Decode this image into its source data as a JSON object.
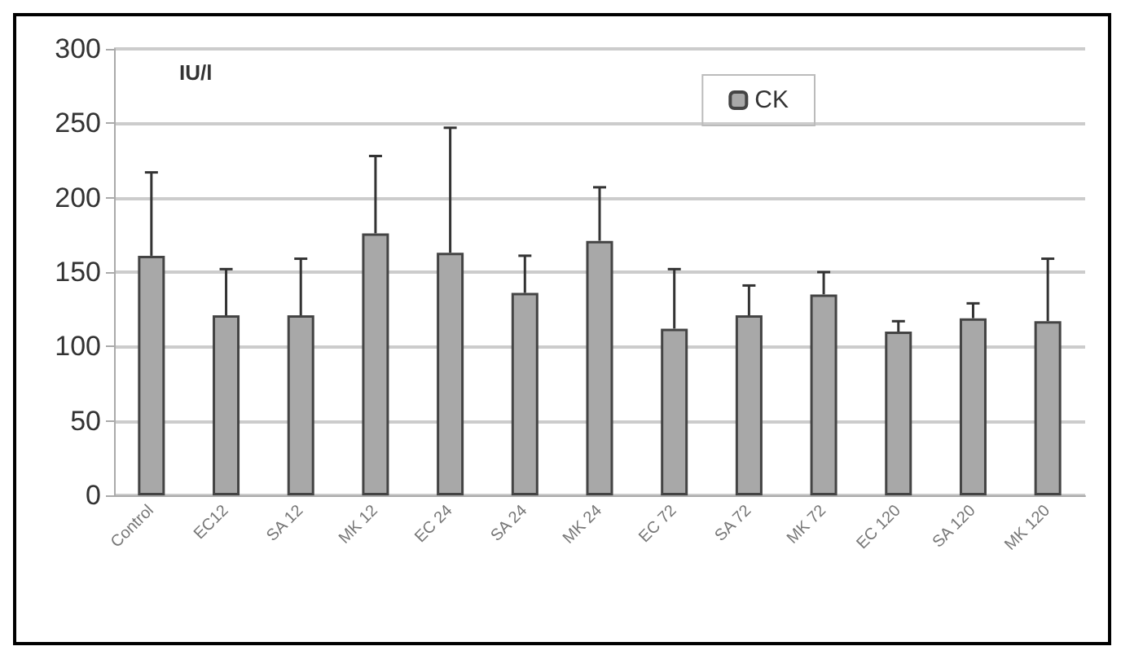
{
  "chart_data": {
    "type": "bar",
    "ylabel": "IU/l",
    "categories": [
      "Control",
      "EC12",
      "SA 12",
      "MK 12",
      "EC 24",
      "SA 24",
      "MK 24",
      "EC 72",
      "SA 72",
      "MK 72",
      "EC 120",
      "SA 120",
      "MK 120"
    ],
    "series": [
      {
        "name": "CK",
        "color": "#a8a8a8",
        "values": [
          161,
          121,
          121,
          176,
          163,
          136,
          171,
          112,
          121,
          135,
          110,
          119,
          117
        ],
        "errors": [
          [
            161,
            217
          ],
          [
            121,
            152
          ],
          [
            121,
            159
          ],
          [
            176,
            228
          ],
          [
            163,
            247
          ],
          [
            136,
            161
          ],
          [
            171,
            207
          ],
          [
            112,
            152
          ],
          [
            121,
            141
          ],
          [
            135,
            150
          ],
          [
            110,
            117
          ],
          [
            119,
            129
          ],
          [
            117,
            159
          ]
        ]
      }
    ],
    "ylim": [
      0,
      300
    ],
    "yticks": [
      0,
      50,
      100,
      150,
      200,
      250,
      300
    ],
    "grid": "y",
    "legend": "top right"
  }
}
